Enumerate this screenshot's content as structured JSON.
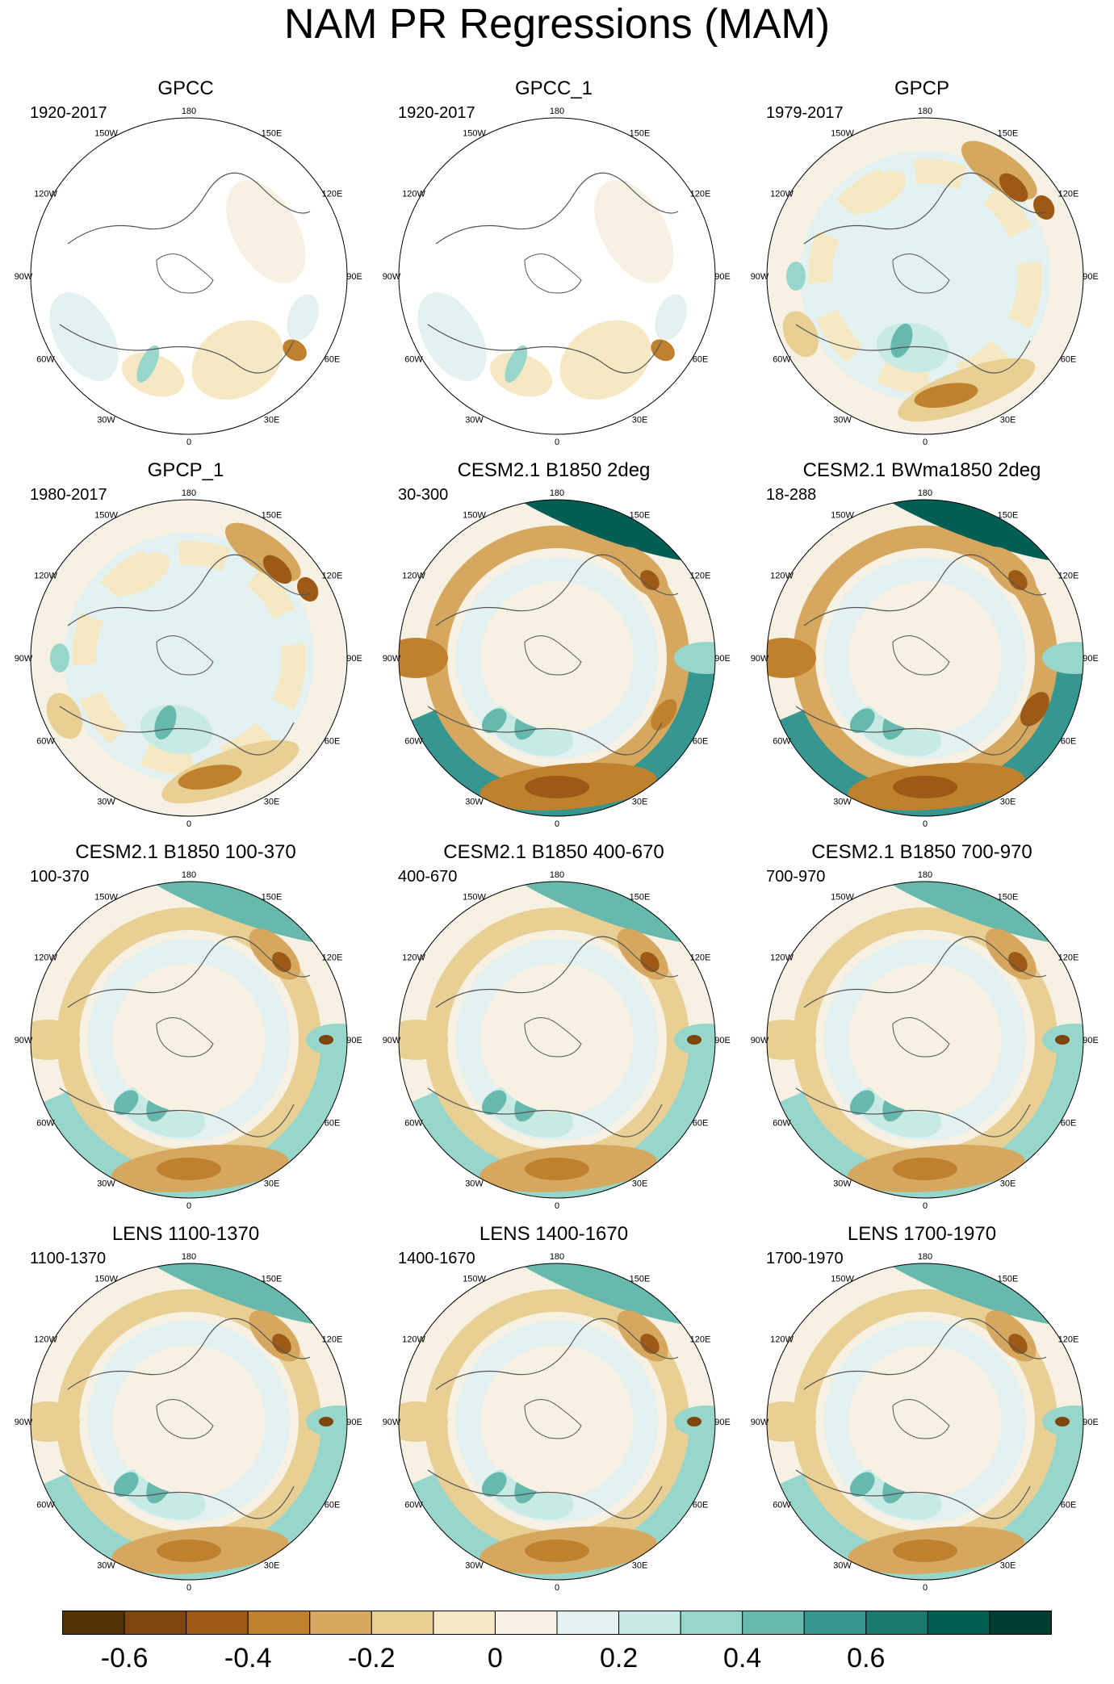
{
  "title": "NAM PR Regressions (MAM)",
  "lon_labels": [
    "180",
    "150E",
    "120E",
    "90E",
    "60E",
    "30E",
    "0",
    "30W",
    "60W",
    "90W",
    "120W",
    "150W"
  ],
  "panels": [
    {
      "title": "GPCC",
      "period": "1920-2017",
      "coverage": "land"
    },
    {
      "title": "GPCC_1",
      "period": "1920-2017",
      "coverage": "land"
    },
    {
      "title": "GPCP",
      "period": "1979-2017",
      "coverage": "global"
    },
    {
      "title": "GPCP_1",
      "period": "1980-2017",
      "coverage": "global"
    },
    {
      "title": "CESM2.1 B1850 2deg",
      "period": "30-300",
      "coverage": "global"
    },
    {
      "title": "CESM2.1 BWma1850 2deg",
      "period": "18-288",
      "coverage": "global"
    },
    {
      "title": "CESM2.1 B1850 100-370",
      "period": "100-370",
      "coverage": "global"
    },
    {
      "title": "CESM2.1 B1850 400-670",
      "period": "400-670",
      "coverage": "global"
    },
    {
      "title": "CESM2.1 B1850 700-970",
      "period": "700-970",
      "coverage": "global"
    },
    {
      "title": "LENS 1100-1370",
      "period": "1100-1370",
      "coverage": "global"
    },
    {
      "title": "LENS 1400-1670",
      "period": "1400-1670",
      "coverage": "global"
    },
    {
      "title": "LENS 1700-1970",
      "period": "1700-1970",
      "coverage": "global"
    }
  ],
  "colorbar": {
    "colors": [
      "#543005",
      "#7d460d",
      "#9c5a16",
      "#bf812d",
      "#d5a75f",
      "#e8cf93",
      "#f5e8c3",
      "#f6f1e3",
      "#e3f1f0",
      "#c7eae5",
      "#97d6cb",
      "#67b9ad",
      "#35978f",
      "#1a7a70",
      "#015e54",
      "#003c30"
    ],
    "ticks": [
      "-0.6",
      "-0.4",
      "-0.2",
      "0",
      "0.2",
      "0.4",
      "0.6"
    ],
    "tick_values": [
      -0.6,
      -0.4,
      -0.2,
      0,
      0.2,
      0.4,
      0.6
    ]
  }
}
